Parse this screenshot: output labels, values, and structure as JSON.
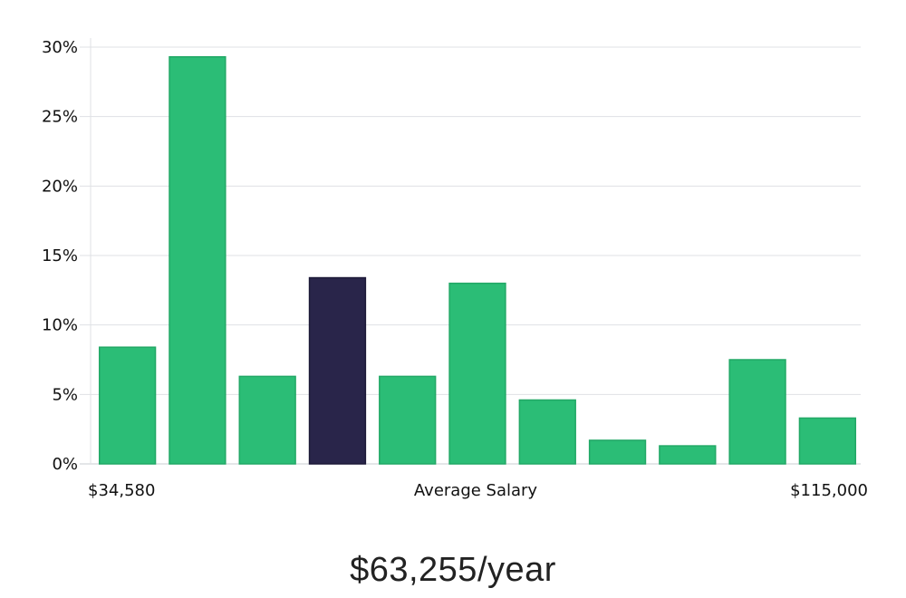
{
  "chart_data": {
    "type": "bar",
    "title": "",
    "xlabel": "Average Salary",
    "ylabel": "",
    "x_min_label": "$34,580",
    "x_max_label": "$115,000",
    "y_ticks": [
      "0%",
      "5%",
      "10%",
      "15%",
      "20%",
      "25%",
      "30%"
    ],
    "ylim": [
      0,
      30
    ],
    "grid": true,
    "values": [
      8.4,
      29.3,
      6.3,
      13.4,
      6.3,
      13.0,
      4.6,
      1.7,
      1.3,
      7.5,
      3.3
    ],
    "highlight_index": 3,
    "bar_color": "#2bbd76",
    "highlight_color": "#29254a"
  },
  "summary": {
    "average_salary": "$63,255/year"
  }
}
